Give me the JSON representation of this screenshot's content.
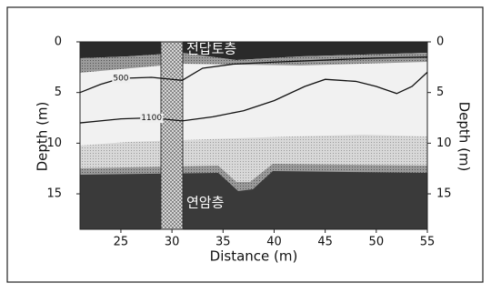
{
  "chart_data": {
    "type": "tomogram",
    "xlabel": "Distance (m)",
    "ylabel": "Depth (m)",
    "y2label": "Depth (m)",
    "xlim": [
      21,
      55
    ],
    "xticks": [
      25,
      30,
      35,
      40,
      45,
      50,
      55
    ],
    "ylim": [
      0,
      18.5
    ],
    "yticks": [
      0,
      5,
      10,
      15
    ],
    "series": [
      {
        "name": "500",
        "color": "#111111",
        "x": [
          21,
          23,
          25,
          28,
          31,
          33,
          36,
          40,
          45,
          50,
          55
        ],
        "values": [
          5.0,
          4.2,
          3.6,
          3.5,
          3.8,
          2.6,
          2.2,
          2.0,
          1.8,
          1.6,
          1.5
        ]
      },
      {
        "name": "1100",
        "color": "#111111",
        "x": [
          21,
          25,
          28,
          31,
          34,
          37,
          40,
          43,
          45,
          48,
          50,
          52,
          53.5,
          55
        ],
        "values": [
          8.0,
          7.6,
          7.5,
          7.8,
          7.4,
          6.8,
          5.8,
          4.4,
          3.7,
          3.9,
          4.4,
          5.1,
          4.4,
          3.0
        ]
      }
    ],
    "annotations": [
      "전답토층",
      "연암층"
    ]
  }
}
